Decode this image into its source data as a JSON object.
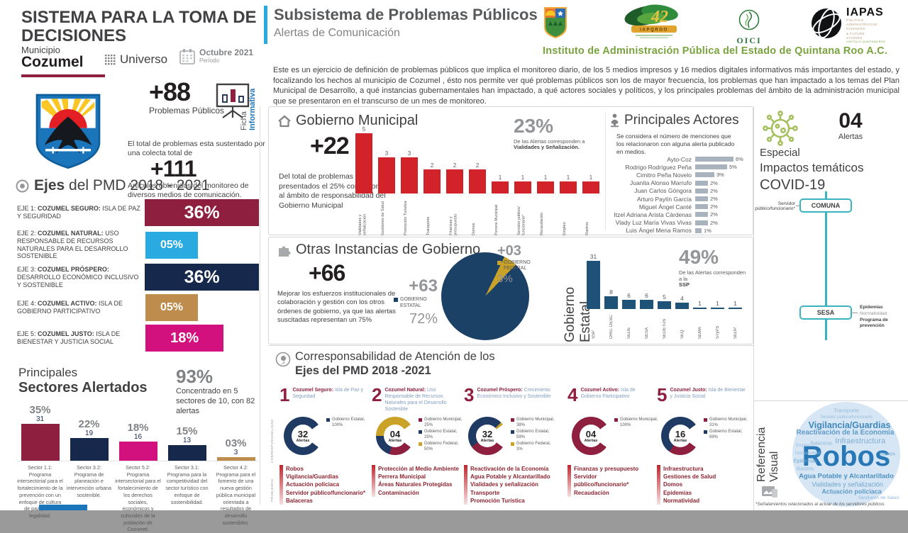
{
  "left": {
    "title": "SISTEMA PARA LA TOMA DE DECISIONES",
    "municipio_label": "Municipio",
    "municipio_name": "Cozumel",
    "universo": "Universo",
    "periodo_value": "Octubre 2021",
    "periodo_label": "Período",
    "ficha1": "Ficha",
    "ficha2": "Informativa",
    "kpi1_value": "+88",
    "kpi1_label": "Problemas Públicos",
    "colecta": "El total de problemas esta sustentado por una colecta total de",
    "kpi2_value": "+111",
    "kpi2_label": "Artículos obtenidos del monitoreo de diversos medios de comunicación."
  },
  "subsistema": {
    "title": "Subsistema de Problemas Públicos",
    "subtitle": "Alertas de Comunicación",
    "intro": "Este es un ejercicio de definición de problemas públicos que implica el monitoreo diario, de los 5 medios impresos y 16 medios digitales informativos más importantes del estado, y focalizando los hechos al municipio de Cozumel , ésto nos permite ver qué problemas públicos son los de mayor frecuencia, los problemas que han impactado a los temas del Plan Municipal de Desarrollo, a qué instancias gubernamentales han impactado, a qué actores sociales y políticos, y los principales problemas del ámbito de la administración municipal que se presentaron en el transcurso de un mes de monitoreo."
  },
  "logos": {
    "iapqroo_num": "42",
    "iapqroo_name": "IAPQROO",
    "oici": "OICI",
    "iapas_name": "IAPAS",
    "iapas_l1": "POLITICO",
    "iapas_l2": "ADMINISTRATIVE",
    "iapas_l3": "SCIENCES",
    "iapas_l4": "& FUTURE",
    "iapas_l5": "STUDIES",
    "iapas_chapter": "CAPITULO QUINTANA ROO",
    "instituto": "Instituto de Administración Pública del Estado de Quintana Roo A.C."
  },
  "ejes": {
    "title_bold": "Ejes",
    "title_rest": " del PMD 2018 - 2021",
    "items": [
      {
        "prefix": "EJE 1: ",
        "bold": "COZUMEL SEGURO: ",
        "rest": "ISLA DE PAZ Y SEGURIDAD",
        "pct": "36%",
        "value": 36,
        "color": "#8E1F3F"
      },
      {
        "prefix": "EJE 2: ",
        "bold": "COZUMEL NATURAL: ",
        "rest": "USO RESPONSABLE DE RECURSOS NATURALES PARA EL DESARROLLO SOSTENIBLE",
        "pct": "05%",
        "value": 5,
        "color": "#29ABE1"
      },
      {
        "prefix": "EJE 3: ",
        "bold": "COZUMEL PRÓSPERO: ",
        "rest": "DESARROLLO ECONÓMICO INCLUSIVO Y SOSTENIBLE",
        "pct": "36%",
        "value": 36,
        "color": "#16294D"
      },
      {
        "prefix": "EJE 4: ",
        "bold": "COZUMEL ACTIVO: ",
        "rest": "ISLA DE GOBIERNO PARTICIPATIVO",
        "pct": "05%",
        "value": 5,
        "color": "#BE8C4D"
      },
      {
        "prefix": "EJE 5: ",
        "bold": "COZUMEL JUSTO: ",
        "rest": "ISLA DE BIENESTAR Y JUSTICIA SOCIAL",
        "pct": "18%",
        "value": 18,
        "color": "#D3117E"
      }
    ]
  },
  "sectores": {
    "title1": "Principales",
    "title2": "Sectores Alertados",
    "kpi": "93%",
    "kpi_desc": "Concentrado en 5 sectores de 10, con 82 alertas",
    "items": [
      {
        "pct": "35%",
        "count": "31",
        "value": 31,
        "color": "#8E1F3F",
        "desc": "Sector 1.1: Programa intersectorial para el fortalecimiento de la prevención con un enfoque de cultura de paz y de la legalidad."
      },
      {
        "pct": "22%",
        "count": "19",
        "value": 19,
        "color": "#16294D",
        "desc": "Sector 3.2: Programa de planeación e intervención urbana sostenible."
      },
      {
        "pct": "18%",
        "count": "16",
        "value": 16,
        "color": "#D3117E",
        "desc": "Sector 5.2: Programa intersectorial para el fortalecimiento de los derechos sociales, económicos y culturales de la población de Cozumel."
      },
      {
        "pct": "15%",
        "count": "13",
        "value": 13,
        "color": "#16294D",
        "desc": "Sector 3.1: Programa para la competitividad del sector turístico con enfoque de sostenibilidad."
      },
      {
        "pct": "03%",
        "count": "3",
        "value": 3,
        "color": "#BE8C4D",
        "desc": "Sector 4.2: Programa para el fomento de una nueva gestión pública municipal orientada a resultados de desarrollo sostenibles."
      }
    ]
  },
  "municipal": {
    "title": "Gobierno Municipal",
    "kpi": "+22",
    "desc": "Del total de problemas presentados el 25% corresponde al ámbito de responsabilidad del Gobierno Municipal",
    "callout_pct": "23%",
    "callout_line": "De las Alertas corresponden a",
    "callout_bold": "Vialidades y Señalización.",
    "bars": [
      {
        "label": "Vialidades y señalización",
        "value": 5
      },
      {
        "label": "Gestiones de Salud",
        "value": 3
      },
      {
        "label": "Promoción Turística",
        "value": 3
      },
      {
        "label": "Transporte",
        "value": 2
      },
      {
        "label": "Finanzas y presupuesto",
        "value": 2
      },
      {
        "label": "Domos",
        "value": 2
      },
      {
        "label": "Perrera Municipal",
        "value": 1
      },
      {
        "label": "Servidor público/ funcionario*",
        "value": 1
      },
      {
        "label": "Recaudación",
        "value": 1
      },
      {
        "label": "Empleo",
        "value": 1
      },
      {
        "label": "Rastros",
        "value": 1
      }
    ]
  },
  "actores": {
    "title": "Principales Actores",
    "desc": "Se considera el número de menciones que los relacionaron con alguna alerta publicado en medios.",
    "rows": [
      {
        "name": "Ayto-Coz",
        "pct": "6%",
        "value": 6
      },
      {
        "name": "Rodrigo Rodríguez Peña",
        "pct": "5%",
        "value": 5
      },
      {
        "name": "Cimitro Peña Novelo",
        "pct": "3%",
        "value": 3
      },
      {
        "name": "Juanita Alonso Marrufo",
        "pct": "2%",
        "value": 2
      },
      {
        "name": "Juan Carlos Góngora",
        "pct": "2%",
        "value": 2
      },
      {
        "name": "Arturo Paylín García",
        "pct": "2%",
        "value": 2
      },
      {
        "name": "Miguel Ángel Canté",
        "pct": "2%",
        "value": 2
      },
      {
        "name": "Itzel Adriana Arista Cárdenas",
        "pct": "2%",
        "value": 2
      },
      {
        "name": "Vlady Luz María Vivas Vivas",
        "pct": "2%",
        "value": 2
      },
      {
        "name": "Luis Ángel Mena Ramos",
        "pct": "1%",
        "value": 1
      }
    ]
  },
  "instancias": {
    "title": "Otras  Instancias de Gobierno",
    "kpi": "+66",
    "desc": "Mejorar los esfuerzos institucionales de colaboración y gestión con los otros órdenes de gobierno, ya que las alertas suscitadas representan un 75%",
    "estatal": {
      "value": "+63",
      "label": "GOBIERNO ESTATAL",
      "pct": "72%",
      "color": "#1C4166"
    },
    "federal": {
      "value": "+03",
      "label": "GOBIERNO FEDERAL",
      "pct": "3%",
      "color": "#C9A227"
    },
    "axis_label": "Gobierno Estatal",
    "callout_pct": "49%",
    "callout_line": "De las Alertas corresponden a la",
    "callout_bold": "SSP",
    "bars": [
      {
        "label": "SSP",
        "value": 31
      },
      {
        "label": "ORG. DESC",
        "value": 8
      },
      {
        "label": "SEDE",
        "value": 6
      },
      {
        "label": "SESA",
        "value": 6
      },
      {
        "label": "SEDETUS",
        "value": 5
      },
      {
        "label": "SEQ",
        "value": 4
      },
      {
        "label": "SEMA",
        "value": 1
      },
      {
        "label": "STyPS",
        "value": 1
      },
      {
        "label": "SEDP",
        "value": 1
      }
    ]
  },
  "corresponsabilidad": {
    "title1": "Corresponsabilidad de Atención de los",
    "title2": "Ejes del PMD 2018 -2021",
    "side1": "CORRESPONSABILIDAD",
    "side2": "PROBLEMAS",
    "alertas_label": "Alertas",
    "columns": [
      {
        "num": "1",
        "bold": "Cozumel Seguro: ",
        "rest": "Isla de Paz y Seguridad",
        "alertas": "32",
        "segments": [
          {
            "color": "#1F3B63",
            "pct": 100,
            "label": "Gobierno Estatal, 100%"
          }
        ],
        "problems": [
          "Robos",
          "Vigilancia/Guardias",
          "Actuación policiaca",
          "Servidor público/funcionario*",
          "Balaceras"
        ]
      },
      {
        "num": "2",
        "bold": "Cozumel Natural: ",
        "rest": "Uso Responsable de Recursos Naturales para el Desarrollo Sostenible",
        "alertas": "04",
        "segments": [
          {
            "color": "#8E1F3F",
            "pct": 25,
            "label": "Gobierno Municipal, 25%"
          },
          {
            "color": "#1F3B63",
            "pct": 25,
            "label": "Gobierno Estatal, 25%"
          },
          {
            "color": "#C9A227",
            "pct": 50,
            "label": "Gobierno Federal, 50%"
          }
        ],
        "problems": [
          "Protección al Medio Ambiente",
          "Perrera Municipal",
          "Áreas Naturales Protegidas",
          "Contaminación"
        ]
      },
      {
        "num": "3",
        "bold": "Cozumel Próspero: ",
        "rest": "Crecimiento Económico Inclusivo y Sostenible",
        "alertas": "32",
        "segments": [
          {
            "color": "#8E1F3F",
            "pct": 38,
            "label": "Gobierno Municipal, 38%"
          },
          {
            "color": "#1F3B63",
            "pct": 59,
            "label": "Gobierno Estatal, 59%"
          },
          {
            "color": "#C9A227",
            "pct": 3,
            "label": "Gobierno Federal, 3%"
          }
        ],
        "problems": [
          "Reactivación de la Economía",
          "Agua Potable y Alcantarillado",
          "Vialidades y señalización",
          "Transporte",
          "Promoción Turística"
        ]
      },
      {
        "num": "4",
        "bold": "Cozumel Activo: ",
        "rest": "Isla de Gobierno Participativo",
        "alertas": "04",
        "segments": [
          {
            "color": "#8E1F3F",
            "pct": 100,
            "label": "Gobierno Municipal, 100%"
          }
        ],
        "problems": [
          "Finanzas y presupuesto",
          "Servidor público/funcionario*",
          "Recaudación"
        ]
      },
      {
        "num": "5",
        "bold": "Cozumel Justo: ",
        "rest": "Isla de Bienestar y Justicia Social",
        "alertas": "16",
        "segments": [
          {
            "color": "#8E1F3F",
            "pct": 31,
            "label": "Gobierno Municipal, 31%"
          },
          {
            "color": "#1F3B63",
            "pct": 69,
            "label": "Gobierno Estatal, 69%"
          }
        ],
        "problems": [
          "Infraestructura",
          "Gestiones de Salud",
          "Domos",
          "Epidemias",
          "Normatividad"
        ]
      }
    ]
  },
  "covid": {
    "alert_value": "04",
    "alert_label": "Alertas",
    "line1": "Especial",
    "line2": "Impactos temáticos",
    "line3": "COVID-19",
    "node1": {
      "label": "COMUNA",
      "side_label": "Servidor público/funcionario*"
    },
    "node2": {
      "label": "SESA",
      "l1": "Epidemias",
      "l2": "Normatividad",
      "l3": "Programa de prevención"
    }
  },
  "referencia": {
    "line1": "Referencia",
    "line2": "Visual"
  },
  "wordcloud": {
    "words": [
      "Robos",
      "Vigilancia/Guardias",
      "Reactivación de la Economía",
      "Infraestructura",
      "Agua Potable y Alcantarillado",
      "Vialidades y señalización",
      "Actuación policiaca",
      "Transporte",
      "Servidor público/funcionario",
      "Balaceras",
      "Domos",
      "Gestiones de Salud",
      "Epidemias",
      "Rastros",
      "Normatividad",
      "Empleo"
    ]
  },
  "footer_note": "*Señalamientos relacionados al actuar de los servidores públicos",
  "chart_data": [
    {
      "type": "bar",
      "title": "Ejes del PMD 2018 - 2021",
      "categories": [
        "EJE 1: COZUMEL SEGURO",
        "EJE 2: COZUMEL NATURAL",
        "EJE 3: COZUMEL PRÓSPERO",
        "EJE 4: COZUMEL ACTIVO",
        "EJE 5: COZUMEL JUSTO"
      ],
      "values": [
        36,
        5,
        36,
        5,
        18
      ],
      "unit": "%"
    },
    {
      "type": "bar",
      "title": "Principales Sectores Alertados",
      "categories": [
        "Sector 1.1",
        "Sector 3.2",
        "Sector 5.2",
        "Sector 3.1",
        "Sector 4.2"
      ],
      "series": [
        {
          "name": "porcentaje",
          "values": [
            35,
            22,
            18,
            15,
            3
          ]
        },
        {
          "name": "alertas",
          "values": [
            31,
            19,
            16,
            13,
            3
          ]
        }
      ]
    },
    {
      "type": "bar",
      "title": "Gobierno Municipal (+22)",
      "categories": [
        "Vialidades y señalización",
        "Gestiones de Salud",
        "Promoción Turística",
        "Transporte",
        "Finanzas y presupuesto",
        "Domos",
        "Perrera Municipal",
        "Servidor público/funcionario*",
        "Recaudación",
        "Empleo",
        "Rastros"
      ],
      "values": [
        5,
        3,
        3,
        2,
        2,
        2,
        1,
        1,
        1,
        1,
        1
      ]
    },
    {
      "type": "bar",
      "title": "Principales Actores (menciones)",
      "categories": [
        "Ayto-Coz",
        "Rodrigo Rodríguez Peña",
        "Cimitro Peña Novelo",
        "Juanita Alonso Marrufo",
        "Juan Carlos Góngora",
        "Arturo Paylín García",
        "Miguel Ángel Canté",
        "Itzel Adriana Arista Cárdenas",
        "Vlady Luz María Vivas Vivas",
        "Luis Ángel Mena Ramos"
      ],
      "values": [
        6,
        5,
        3,
        2,
        2,
        2,
        2,
        2,
        2,
        1
      ],
      "unit": "%"
    },
    {
      "type": "pie",
      "title": "Otras Instancias de Gobierno (+66)",
      "slices": [
        {
          "label": "Gobierno Estatal",
          "value": 63,
          "pct": 72
        },
        {
          "label": "Gobierno Federal",
          "value": 3,
          "pct": 3
        }
      ]
    },
    {
      "type": "bar",
      "title": "Gobierno Estatal (+63)",
      "categories": [
        "SSP",
        "ORG. DESC",
        "SEDE",
        "SESA",
        "SEDETUS",
        "SEQ",
        "SEMA",
        "STyPS",
        "SEDP"
      ],
      "values": [
        31,
        8,
        6,
        6,
        5,
        4,
        1,
        1,
        1
      ]
    },
    {
      "type": "pie",
      "title": "Corresponsabilidad por Eje (donuts)",
      "slices": [
        {
          "label": "Eje 1 - Estatal",
          "value": 100
        },
        {
          "label": "Eje 2 - Municipal/Estatal/Federal",
          "value": "25/25/50"
        },
        {
          "label": "Eje 3 - Municipal/Estatal/Federal",
          "value": "38/59/3"
        },
        {
          "label": "Eje 4 - Municipal",
          "value": 100
        },
        {
          "label": "Eje 5 - Municipal/Estatal",
          "value": "31/69"
        }
      ]
    }
  ]
}
